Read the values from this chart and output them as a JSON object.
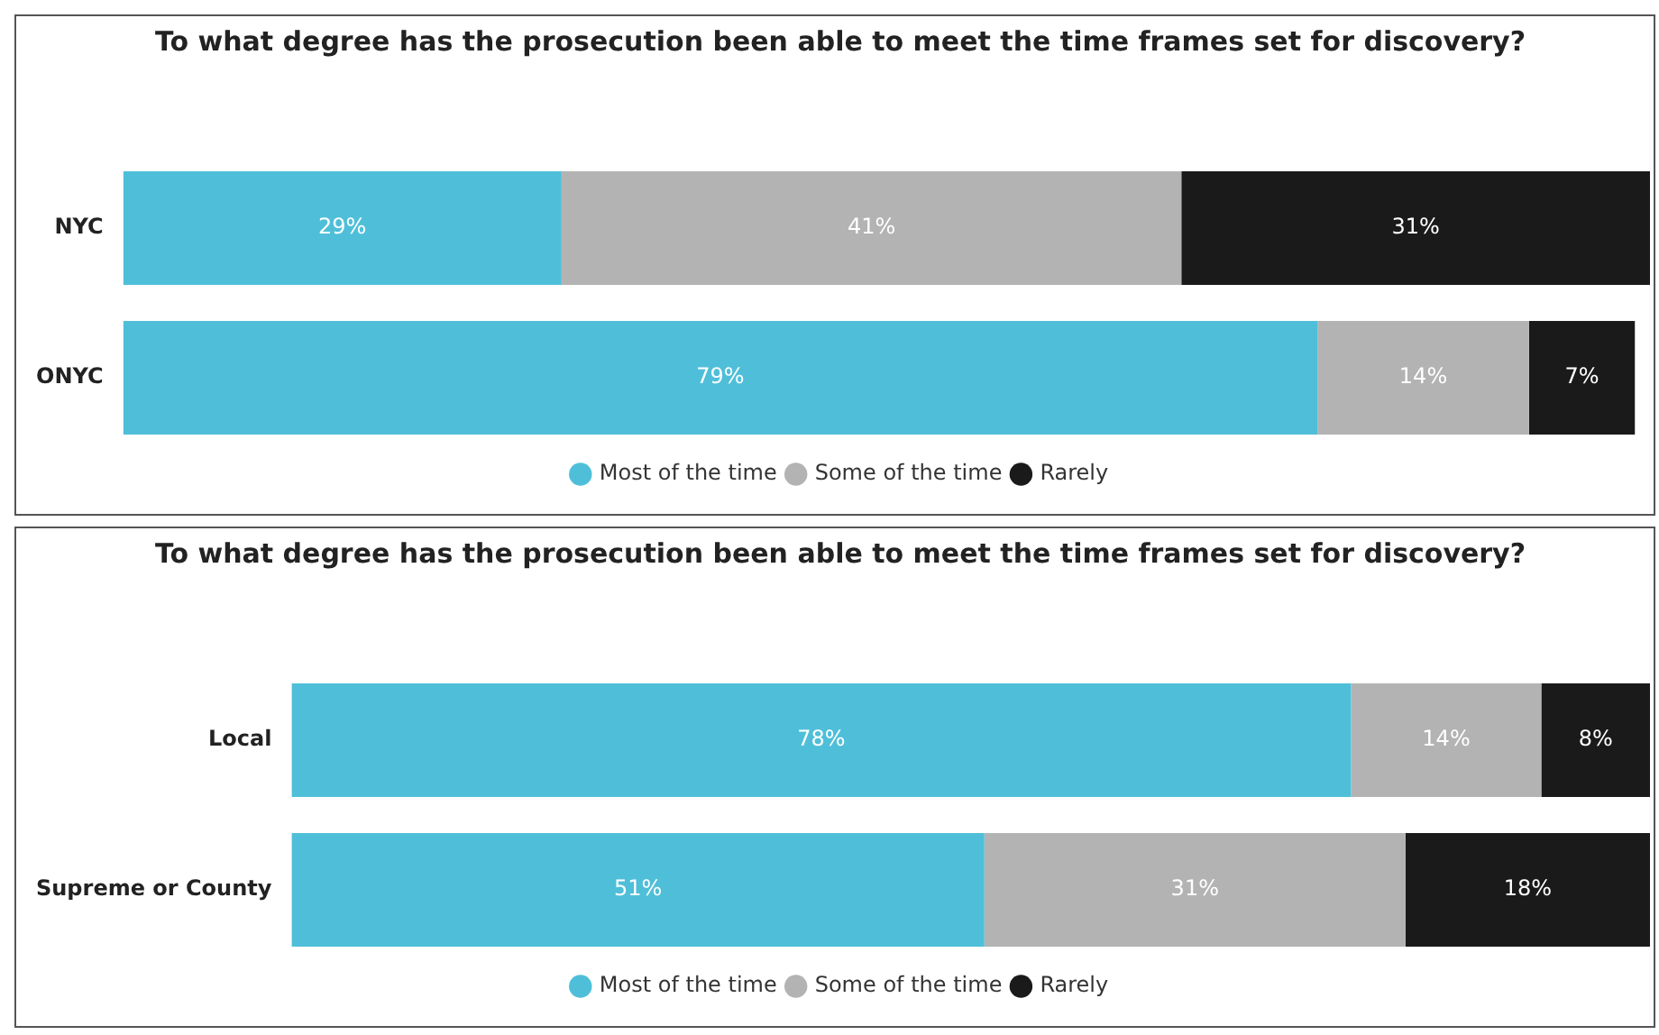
{
  "chart_data": [
    {
      "type": "bar",
      "orientation": "horizontal",
      "stacked": true,
      "title": "To what degree has the prosecution been able to meet the time frames set for discovery?",
      "categories": [
        "NYC",
        "ONYC"
      ],
      "legend": "bottom",
      "grid": false,
      "tick_labels": "y",
      "series": [
        {
          "name": "Most of the time",
          "color": "#4fbfd9",
          "values": [
            29,
            79
          ],
          "value_labels": [
            "29%",
            "79%"
          ]
        },
        {
          "name": "Some of the time",
          "color": "#b3b3b3",
          "values": [
            41,
            14
          ],
          "value_labels": [
            "41%",
            "14%"
          ]
        },
        {
          "name": "Rarely",
          "color": "#1a1a1a",
          "values": [
            31,
            7
          ],
          "value_labels": [
            "31%",
            "7%"
          ]
        }
      ]
    },
    {
      "type": "bar",
      "orientation": "horizontal",
      "stacked": true,
      "title": "To what degree has the prosecution been able to meet the time frames set for discovery?",
      "categories": [
        "Local",
        "Supreme or County"
      ],
      "legend": "bottom",
      "grid": false,
      "tick_labels": "y",
      "series": [
        {
          "name": "Most of the time",
          "color": "#4fbfd9",
          "values": [
            78,
            51
          ],
          "value_labels": [
            "78%",
            "51%"
          ]
        },
        {
          "name": "Some of the time",
          "color": "#b3b3b3",
          "values": [
            14,
            31
          ],
          "value_labels": [
            "14%",
            "31%"
          ]
        },
        {
          "name": "Rarely",
          "color": "#1a1a1a",
          "values": [
            8,
            18
          ],
          "value_labels": [
            "8%",
            "18%"
          ]
        }
      ]
    }
  ]
}
